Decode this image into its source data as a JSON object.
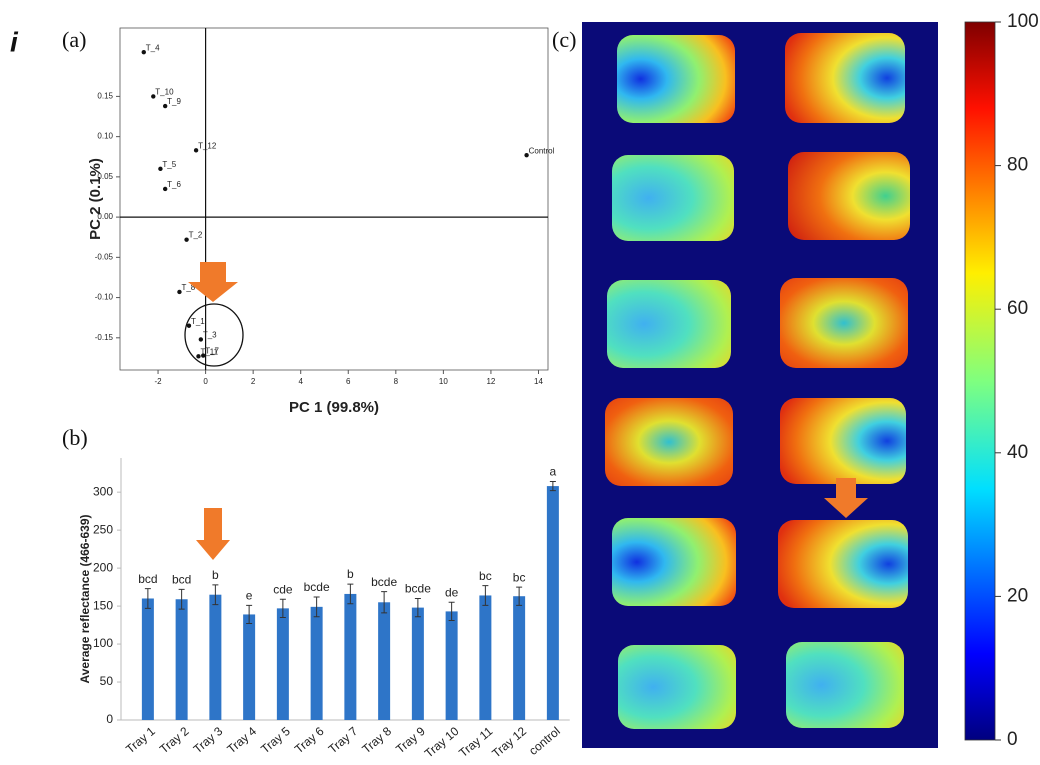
{
  "figure_label": "i",
  "chart_data": [
    {
      "type": "scatter",
      "panel_label": "(a)",
      "x_label": "PC 1 (99.8%)",
      "y_label": "PC 2 (0.1%)",
      "labels": [
        "T_4",
        "T_10",
        "T_9",
        "T_12",
        "T_5",
        "T_6",
        "T_2",
        "T_8",
        "T_1",
        "T_3",
        "T_7",
        "T_11",
        "Control"
      ],
      "x": [
        -2.6,
        -2.2,
        -1.7,
        -0.4,
        -1.9,
        -1.7,
        -0.8,
        -1.1,
        -0.7,
        -0.2,
        -0.1,
        -0.3,
        13.5
      ],
      "values": [
        0.205,
        0.15,
        0.138,
        0.083,
        0.06,
        0.035,
        -0.028,
        -0.093,
        -0.135,
        -0.152,
        -0.172,
        -0.173,
        0.077
      ],
      "color": "#111111",
      "xlim": [
        -3.6,
        14.4
      ],
      "ylim": [
        -0.19,
        0.235
      ],
      "xticks": [
        -2,
        0,
        2,
        4,
        6,
        8,
        10,
        12,
        14
      ],
      "yticks": [
        {
          "value": -0.15,
          "label": "-0.15"
        },
        {
          "value": -0.1,
          "label": "-0.10"
        },
        {
          "value": -0.05,
          "label": "-0.05"
        },
        {
          "value": 0,
          "label": "0.00"
        },
        {
          "value": 0.05,
          "label": "0.05"
        },
        {
          "value": 0.1,
          "label": "0.10"
        },
        {
          "value": 0.15,
          "label": "0.15"
        }
      ]
    },
    {
      "type": "bar",
      "panel_label": "(b)",
      "y_label": "Average reflectance (466-639)",
      "categories": [
        "Tray 1",
        "Tray 2",
        "Tray 3",
        "Tray 4",
        "Tray 5",
        "Tray 6",
        "Tray 7",
        "Tray 8",
        "Tray 9",
        "Tray 10",
        "Tray 11",
        "Tray 12",
        "control"
      ],
      "values": [
        160,
        159,
        165,
        139,
        147,
        149,
        166,
        155,
        148,
        143,
        164,
        163,
        308
      ],
      "errors": [
        13,
        13,
        13,
        12,
        12,
        13,
        13,
        14,
        12,
        12,
        13,
        12,
        6
      ],
      "annotations": [
        "bcd",
        "bcd",
        "b",
        "e",
        "cde",
        "bcde",
        "b",
        "bcde",
        "bcde",
        "de",
        "bc",
        "bc",
        "a"
      ],
      "color": "#2e75c8",
      "ylim": [
        0,
        345
      ],
      "yticks": [
        0,
        50,
        100,
        150,
        200,
        250,
        300
      ]
    },
    {
      "type": "colorbar",
      "panel_label": "(c)",
      "colormap": "jet",
      "zlim": [
        0,
        100
      ],
      "zticks": [
        0,
        20,
        40,
        60,
        80,
        100
      ]
    }
  ]
}
